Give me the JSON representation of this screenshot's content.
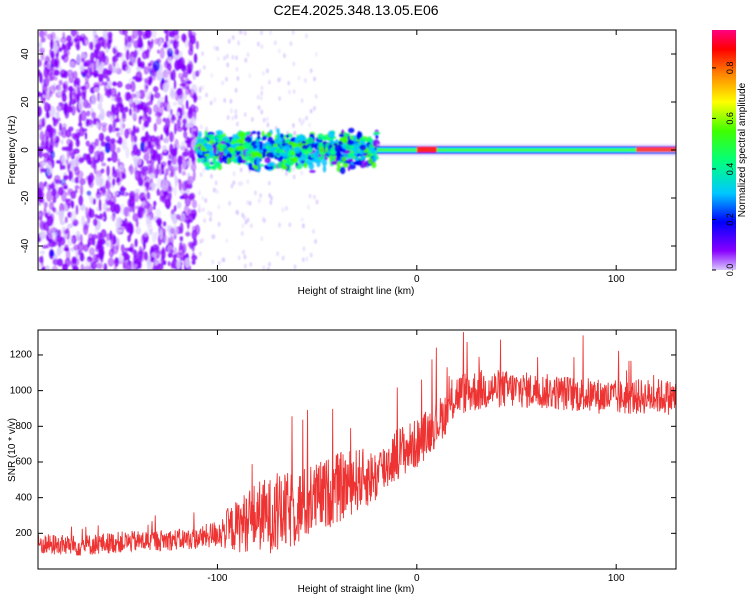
{
  "title": "C2E4.2025.348.13.05.E06",
  "chart_data": [
    {
      "type": "heatmap",
      "xlabel": "Height of straight line (km)",
      "ylabel": "Frequency (Hz)",
      "xlim": [
        -190,
        130
      ],
      "ylim": [
        -50,
        50
      ],
      "xticks": [
        -100,
        0,
        100
      ],
      "yticks": [
        -40,
        -20,
        0,
        20,
        40
      ],
      "grid": false,
      "colorbar": {
        "label": "Normalized spectral amplitude",
        "range": [
          0.0,
          0.95
        ],
        "ticks": [
          "0.0",
          "0.2",
          "0.4",
          "0.6",
          "0.8"
        ],
        "colors": [
          "#d8c8ff",
          "#8800ff",
          "#0000ff",
          "#00c8ff",
          "#00ff80",
          "#40ff00",
          "#ffff00",
          "#ff8000",
          "#ff0000",
          "#ff0080"
        ]
      },
      "description_regions": [
        {
          "x_range": [
            -190,
            -110
          ],
          "pattern": "scattered low-amplitude speckle over full frequency band",
          "amplitude": 0.1
        },
        {
          "x_range": [
            -110,
            -20
          ],
          "pattern": "noisy band centered near 0 Hz, width about 10 Hz",
          "amplitude": 0.35
        },
        {
          "x_range": [
            -20,
            130
          ],
          "pattern": "narrow steady band near 0 Hz",
          "amplitude": 0.45
        }
      ]
    },
    {
      "type": "line",
      "xlabel": "Height of straight line (km)",
      "ylabel": "SNR (10 * v/v)",
      "xlim": [
        -190,
        130
      ],
      "ylim": [
        0,
        1340
      ],
      "xticks": [
        -100,
        0,
        100
      ],
      "yticks": [
        200,
        400,
        600,
        800,
        1000,
        1200
      ],
      "grid": false,
      "series": [
        {
          "name": "SNR",
          "color": "#ee3333",
          "x": [
            -190,
            -170,
            -150,
            -130,
            -110,
            -100,
            -90,
            -80,
            -70,
            -60,
            -50,
            -40,
            -30,
            -20,
            -10,
            0,
            10,
            15,
            20,
            30,
            40,
            60,
            80,
            100,
            120,
            130
          ],
          "y": [
            140,
            130,
            150,
            160,
            170,
            200,
            240,
            300,
            300,
            340,
            400,
            450,
            500,
            520,
            650,
            700,
            820,
            880,
            980,
            1000,
            1010,
            1000,
            980,
            960,
            970,
            960
          ],
          "noise_amplitude": [
            60,
            60,
            60,
            60,
            60,
            80,
            150,
            200,
            220,
            220,
            200,
            200,
            180,
            150,
            150,
            140,
            130,
            120,
            120,
            120,
            110,
            100,
            100,
            100,
            100,
            100
          ]
        }
      ]
    }
  ]
}
